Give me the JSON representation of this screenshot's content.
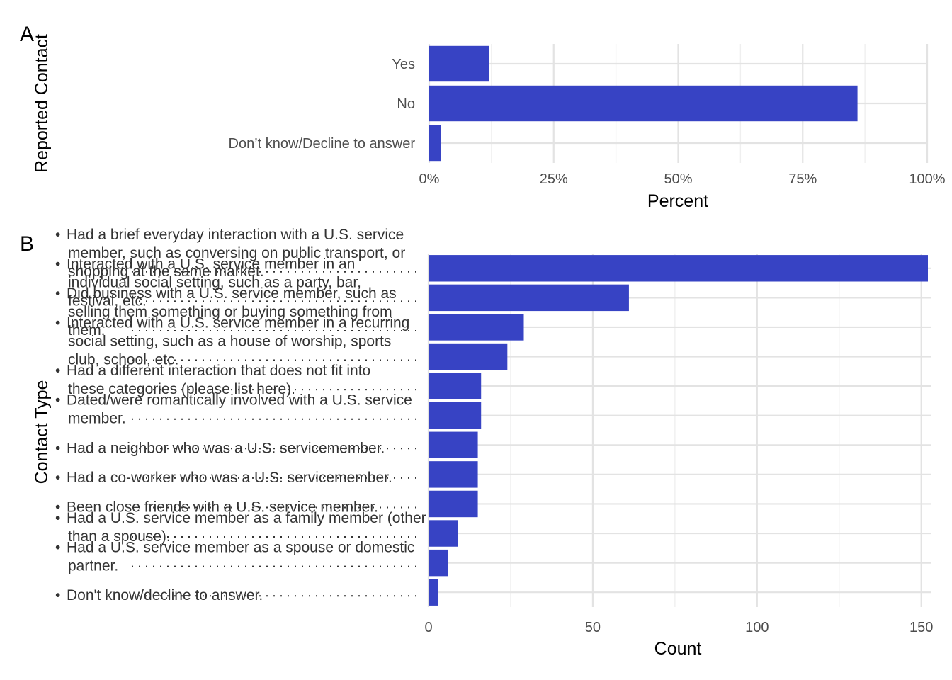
{
  "chart_data": [
    {
      "panel": "A",
      "type": "bar",
      "orientation": "horizontal",
      "xlabel": "Percent",
      "ylabel": "Reported Contact",
      "categories": [
        "Yes",
        "No",
        "Don’t know/Decline to answer"
      ],
      "values": [
        12,
        86,
        2.3
      ],
      "xlim": [
        0,
        100
      ],
      "xticks": [
        "0%",
        "25%",
        "50%",
        "75%",
        "100%"
      ],
      "grid": true,
      "bar_color": "#3743C4"
    },
    {
      "panel": "B",
      "type": "bar",
      "orientation": "horizontal",
      "xlabel": "Count",
      "ylabel": "Contact Type",
      "categories": [
        "Had a brief everyday interaction with a U.S. service member, such as conversing on public transport, or shopping at the same market.",
        "Interacted with a U.S. service member in an individual social setting, such as a party, bar, festival, etc.",
        "Did business with a U.S. service member, such as selling them something or buying something from them.",
        "Interacted with a U.S. service member in a recurring social setting, such as a house of worship, sports club, school, etc.",
        "Had a different interaction that does not fit into these categories (please list here).",
        "Dated/were romantically involved with a U.S. service member.",
        "Had a neighbor who was a U.S. servicemember.",
        "Had a co-worker who was a U.S. servicemember.",
        "Been close friends with a U.S. service member.",
        "Had a U.S. service member as a family member (other than a spouse).",
        "Had a U.S. service member as a spouse or domestic partner.",
        "Don't know/decline to answer."
      ],
      "category_lines": [
        [
          "Had a brief everyday interaction with a U.S. service",
          "member, such as conversing on public transport, or",
          "shopping at the same market."
        ],
        [
          "Interacted with a U.S. service member in an",
          "individual social setting, such as a party, bar,",
          "festival, etc."
        ],
        [
          "Did business with a U.S. service member, such as",
          "selling them something or buying something from",
          "them."
        ],
        [
          "Interacted with a U.S. service member in a recurring",
          "social setting, such as a house of worship, sports",
          "club, school, etc."
        ],
        [
          "Had a different interaction that does not fit into",
          "these categories (please list here)."
        ],
        [
          "Dated/were romantically involved with a U.S. service",
          "member."
        ],
        [
          "Had a neighbor who was a U.S. servicemember."
        ],
        [
          "Had a co-worker who was a U.S. servicemember."
        ],
        [
          "Been close friends with a U.S. service member."
        ],
        [
          "Had a U.S. service member as a family member (other",
          "than a spouse)."
        ],
        [
          "Had a U.S. service member as a spouse or domestic",
          "partner."
        ],
        [
          "Don't know/decline to answer."
        ]
      ],
      "values": [
        152,
        61,
        29,
        24,
        16,
        16,
        15,
        15,
        15,
        9,
        6,
        3
      ],
      "xlim": [
        0,
        152
      ],
      "xticks": [
        0,
        50,
        100,
        150
      ],
      "grid": true,
      "bar_color": "#3743C4"
    }
  ],
  "panel_tags": [
    "A",
    "B"
  ]
}
